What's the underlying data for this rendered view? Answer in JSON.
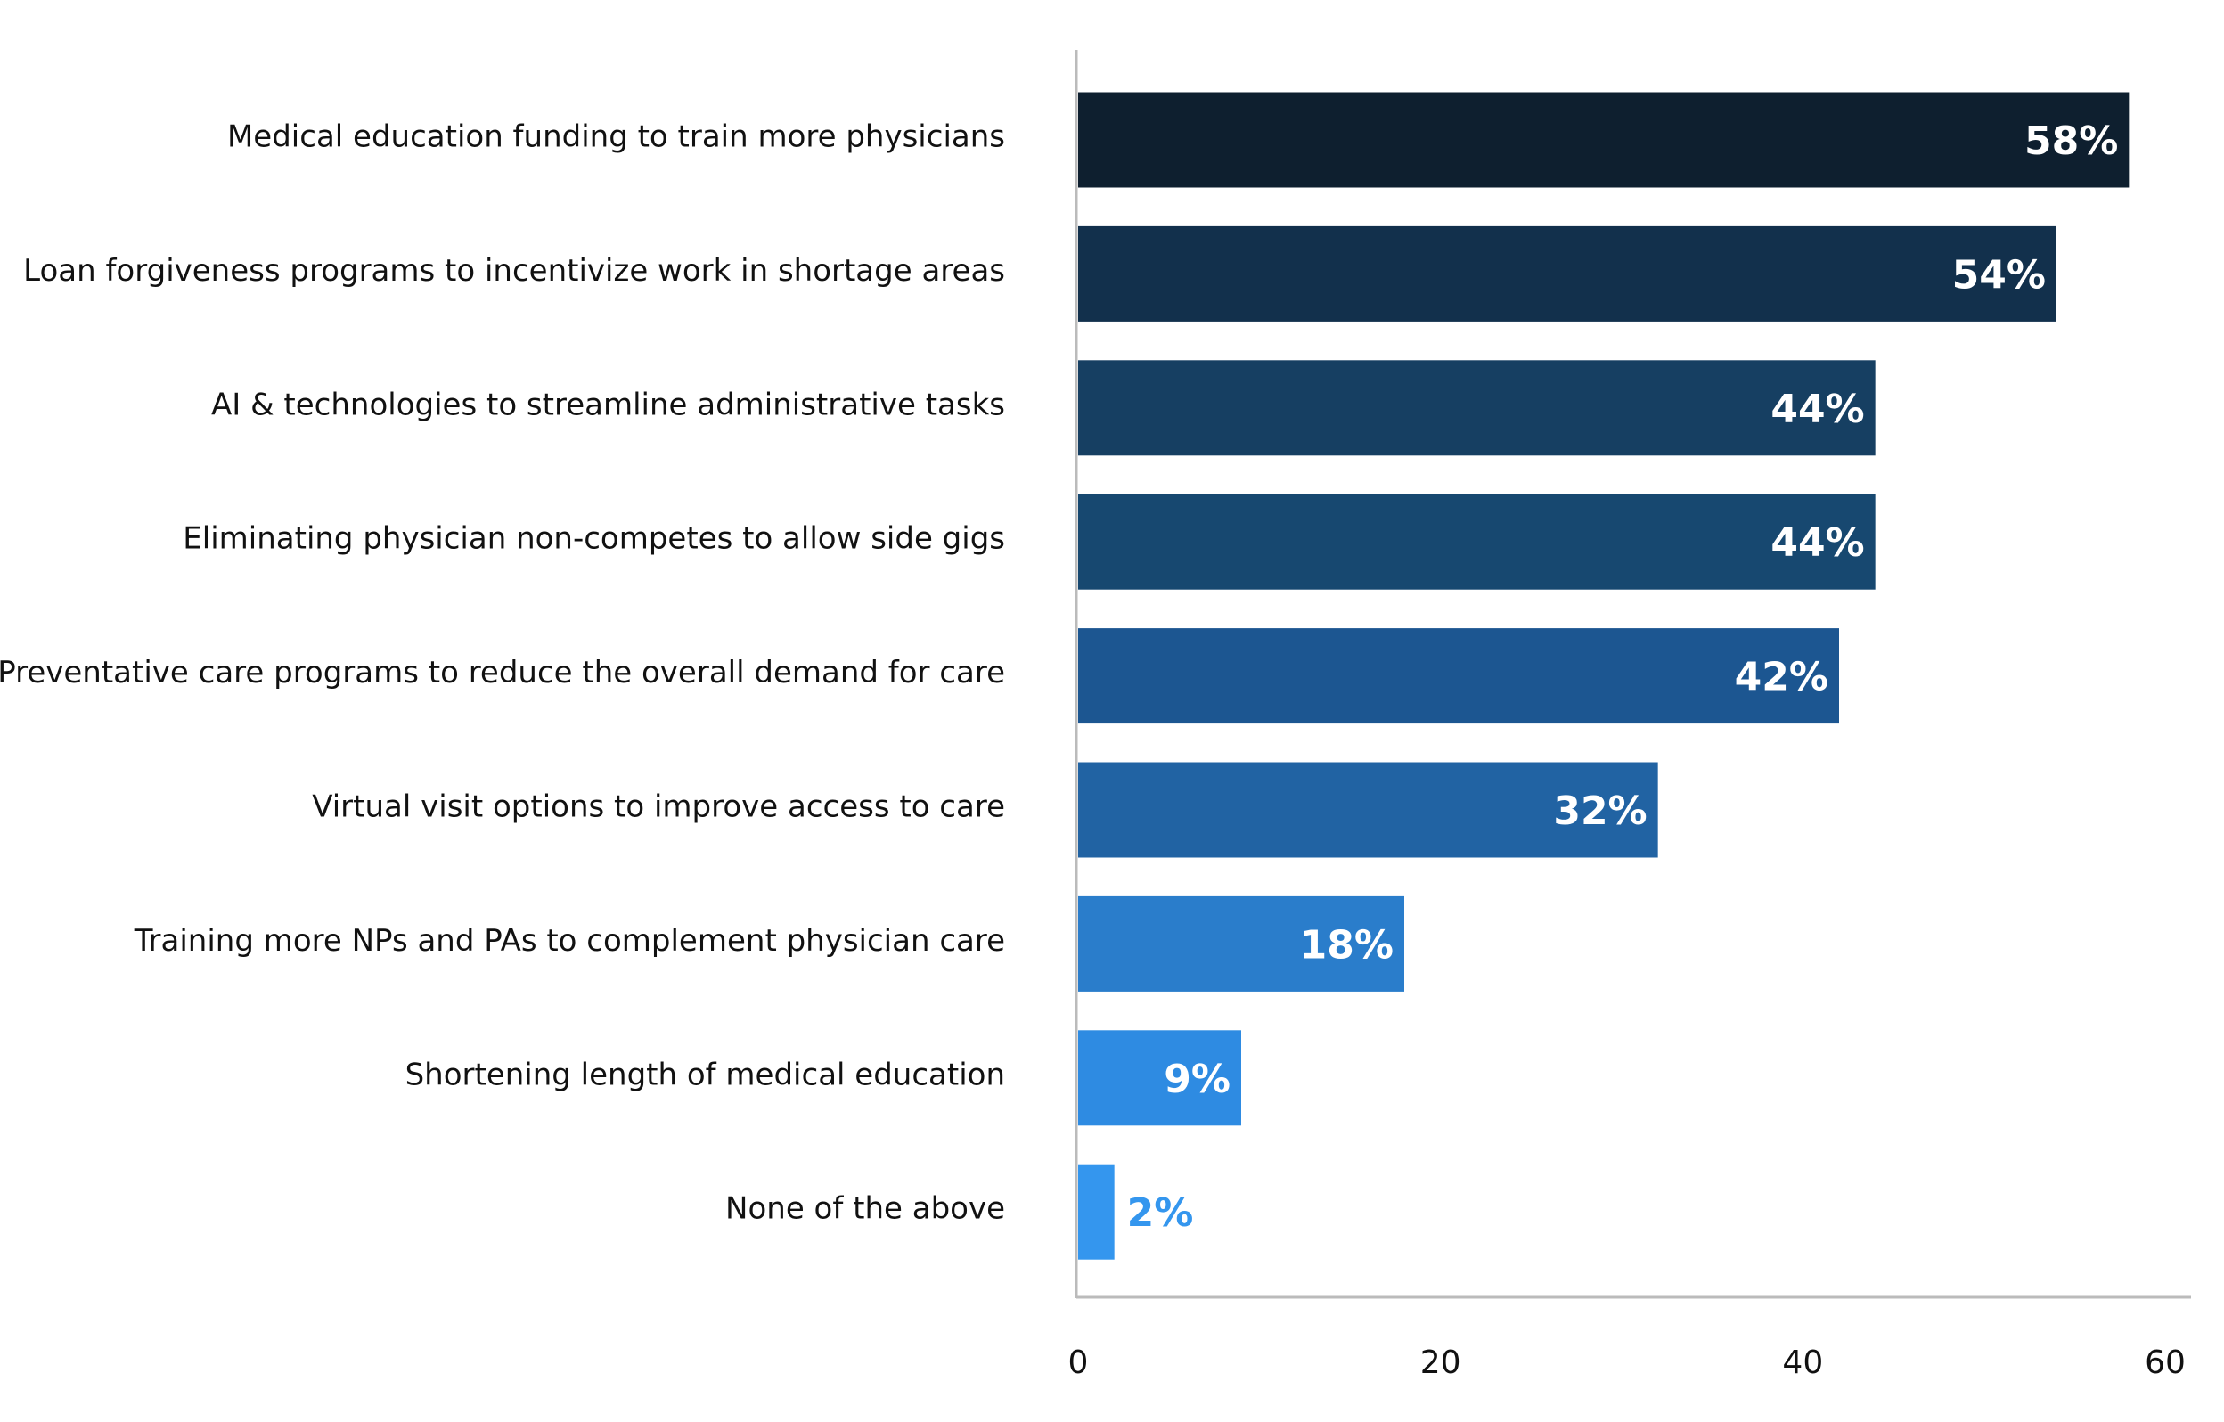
{
  "chart_data": {
    "type": "barh",
    "categories": [
      "Medical education funding to train more physicians",
      "Loan forgiveness programs to incentivize work in shortage areas",
      "AI & technologies to streamline administrative tasks",
      "Eliminating physician non-competes to allow side gigs",
      "Preventative care programs to reduce the overall demand for care",
      "Virtual visit options to improve access to care",
      "Training more NPs and PAs to complement physician care",
      "Shortening length of medical education",
      "None of the above"
    ],
    "values": [
      58,
      54,
      44,
      44,
      42,
      32,
      18,
      9,
      2
    ],
    "value_labels": [
      "58%",
      "54%",
      "44%",
      "44%",
      "42%",
      "32%",
      "18%",
      "9%",
      "2%"
    ],
    "colors": [
      "#0e1f2f",
      "#12304c",
      "#163f62",
      "#174870",
      "#1c5691",
      "#2163a3",
      "#2a7dcb",
      "#2e8be2",
      "#3496ee"
    ],
    "xlim": [
      0,
      60
    ],
    "xticks": [
      0,
      20,
      40,
      60
    ],
    "grid": false
  }
}
